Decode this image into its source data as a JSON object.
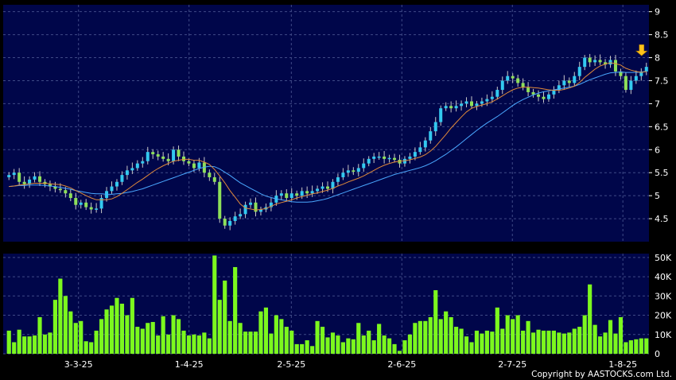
{
  "chart_data": [
    {
      "type": "candlestick",
      "panel": "price",
      "ylim": [
        4.0,
        9.15
      ],
      "y_ticks": [
        "4.5",
        "5",
        "5.5",
        "6",
        "6.5",
        "7",
        "7.5",
        "8",
        "8.5",
        "9"
      ],
      "grid": true,
      "colors": {
        "up": "#33c9f0",
        "down": "#8ee05a",
        "ma_short": "#e08a3a",
        "ma_long": "#4aa8ff",
        "background": "#00064a"
      },
      "close": [
        5.45,
        5.5,
        5.3,
        5.25,
        5.35,
        5.42,
        5.3,
        5.25,
        5.2,
        5.15,
        5.12,
        5.05,
        4.95,
        4.8,
        4.85,
        4.75,
        4.7,
        4.72,
        4.95,
        5.1,
        5.2,
        5.3,
        5.45,
        5.55,
        5.6,
        5.7,
        5.75,
        5.95,
        5.9,
        5.85,
        5.8,
        5.75,
        6.0,
        5.85,
        5.75,
        5.7,
        5.6,
        5.72,
        5.5,
        5.4,
        5.3,
        4.5,
        4.35,
        4.45,
        4.55,
        4.6,
        4.8,
        4.85,
        4.65,
        4.7,
        4.75,
        4.85,
        5.0,
        5.05,
        4.95,
        5.05,
        5.0,
        5.1,
        5.05,
        5.1,
        5.15,
        5.2,
        5.15,
        5.3,
        5.4,
        5.5,
        5.55,
        5.52,
        5.6,
        5.7,
        5.8,
        5.85,
        5.85,
        5.8,
        5.82,
        5.78,
        5.7,
        5.8,
        5.85,
        5.95,
        6.05,
        6.2,
        6.4,
        6.6,
        6.9,
        6.95,
        6.9,
        6.95,
        7.0,
        7.05,
        6.95,
        7.0,
        7.05,
        7.1,
        7.15,
        7.3,
        7.5,
        7.6,
        7.55,
        7.45,
        7.35,
        7.25,
        7.2,
        7.15,
        7.1,
        7.2,
        7.3,
        7.4,
        7.5,
        7.45,
        7.6,
        7.8,
        8.0,
        7.9,
        7.95,
        7.9,
        7.85,
        7.95,
        7.7,
        7.6,
        7.3,
        7.5,
        7.6,
        7.7,
        7.8
      ],
      "series": [
        {
          "name": "",
          "type": "line",
          "values": [
            5.2,
            5.21,
            5.23,
            5.24,
            5.26,
            5.27,
            5.27,
            5.27,
            5.26,
            5.25,
            5.24,
            5.21,
            5.17,
            5.11,
            5.06,
            5.0,
            4.95,
            4.91,
            4.91,
            4.91,
            4.93,
            4.98,
            5.05,
            5.13,
            5.21,
            5.29,
            5.36,
            5.44,
            5.52,
            5.59,
            5.65,
            5.7,
            5.75,
            5.77,
            5.79,
            5.79,
            5.77,
            5.77,
            5.73,
            5.68,
            5.57,
            5.43,
            5.28,
            5.11,
            4.97,
            4.82,
            4.73,
            4.71,
            4.69,
            4.7,
            4.72,
            4.77,
            4.82,
            4.85,
            4.88,
            4.91,
            4.95,
            4.98,
            5.01,
            5.04,
            5.06,
            5.09,
            5.12,
            5.16,
            5.21,
            5.25,
            5.3,
            5.34,
            5.38,
            5.43,
            5.49,
            5.55,
            5.61,
            5.66,
            5.7,
            5.73,
            5.75,
            5.76,
            5.78,
            5.81,
            5.84,
            5.89,
            5.97,
            6.07,
            6.2,
            6.33,
            6.47,
            6.59,
            6.71,
            6.82,
            6.9,
            6.94,
            6.97,
            7.0,
            7.04,
            7.1,
            7.17,
            7.24,
            7.3,
            7.34,
            7.36,
            7.36,
            7.35,
            7.34,
            7.32,
            7.3,
            7.29,
            7.29,
            7.31,
            7.34,
            7.38,
            7.46,
            7.57,
            7.66,
            7.75,
            7.82,
            7.86,
            7.89,
            7.87,
            7.84,
            7.77,
            7.73,
            7.7,
            7.68,
            7.7
          ]
        },
        {
          "name": "",
          "type": "line",
          "values": [
            5.2,
            5.21,
            5.22,
            5.22,
            5.23,
            5.23,
            5.23,
            5.22,
            5.21,
            5.2,
            5.18,
            5.16,
            5.14,
            5.11,
            5.09,
            5.07,
            5.05,
            5.04,
            5.04,
            5.03,
            5.03,
            5.04,
            5.05,
            5.07,
            5.09,
            5.12,
            5.15,
            5.19,
            5.23,
            5.27,
            5.31,
            5.35,
            5.39,
            5.43,
            5.47,
            5.51,
            5.55,
            5.59,
            5.62,
            5.64,
            5.63,
            5.58,
            5.51,
            5.44,
            5.36,
            5.28,
            5.22,
            5.16,
            5.1,
            5.04,
            4.99,
            4.96,
            4.93,
            4.91,
            4.89,
            4.87,
            4.86,
            4.86,
            4.86,
            4.87,
            4.89,
            4.91,
            4.94,
            4.98,
            5.02,
            5.06,
            5.1,
            5.14,
            5.18,
            5.22,
            5.26,
            5.3,
            5.34,
            5.38,
            5.42,
            5.46,
            5.49,
            5.52,
            5.55,
            5.58,
            5.61,
            5.65,
            5.7,
            5.76,
            5.83,
            5.9,
            5.98,
            6.06,
            6.15,
            6.24,
            6.33,
            6.42,
            6.5,
            6.58,
            6.65,
            6.72,
            6.8,
            6.88,
            6.96,
            7.03,
            7.09,
            7.14,
            7.19,
            7.23,
            7.26,
            7.28,
            7.3,
            7.32,
            7.34,
            7.36,
            7.38,
            7.42,
            7.47,
            7.52,
            7.56,
            7.6,
            7.64,
            7.67,
            7.68,
            7.69,
            7.68,
            7.68,
            7.68,
            7.69,
            7.7
          ]
        }
      ],
      "annotations": [
        {
          "type": "arrow-down",
          "color": "#ffc21a"
        }
      ]
    },
    {
      "type": "bar",
      "panel": "volume",
      "ylim": [
        0,
        52000
      ],
      "y_ticks": [
        "0",
        "10K",
        "20K",
        "30K",
        "40K",
        "50K"
      ],
      "x_ticks": [
        "3-3-25",
        "1-4-25",
        "2-5-25",
        "2-6-25",
        "2-7-25",
        "1-8-25"
      ],
      "grid": true,
      "color": "#7cf81e",
      "values": [
        12000,
        6000,
        12500,
        9000,
        9000,
        9500,
        19000,
        10000,
        11000,
        28000,
        39000,
        30000,
        22000,
        16000,
        17000,
        6500,
        6000,
        12000,
        18000,
        23000,
        25000,
        29000,
        26000,
        20000,
        29000,
        14000,
        13000,
        16000,
        16500,
        9500,
        19500,
        10000,
        20000,
        18000,
        12000,
        9500,
        10000,
        9500,
        11000,
        8000,
        51000,
        28000,
        38000,
        17000,
        45000,
        16000,
        11500,
        11500,
        11500,
        22000,
        24000,
        10500,
        20000,
        18000,
        14000,
        12000,
        5000,
        5000,
        7000,
        4000,
        17000,
        14000,
        8500,
        11000,
        9500,
        6000,
        8000,
        7500,
        16000,
        9500,
        12000,
        7000,
        15500,
        9500,
        8000,
        5000,
        1500,
        7000,
        10000,
        16000,
        17000,
        17000,
        19000,
        33000,
        18000,
        22000,
        19000,
        14000,
        13000,
        9000,
        6000,
        12000,
        10500,
        12000,
        11500,
        24000,
        13000,
        20000,
        18000,
        20000,
        12000,
        17000,
        11000,
        12500,
        12000,
        12000,
        12000,
        11000,
        10500,
        11000,
        13000,
        14000,
        20000,
        36000,
        15000,
        9000,
        11000,
        17500,
        10500,
        19000,
        6000,
        7000,
        7500,
        8000,
        8000
      ]
    }
  ],
  "footer": {
    "copyright": "Copyright by AASTOCKS.com Ltd."
  }
}
